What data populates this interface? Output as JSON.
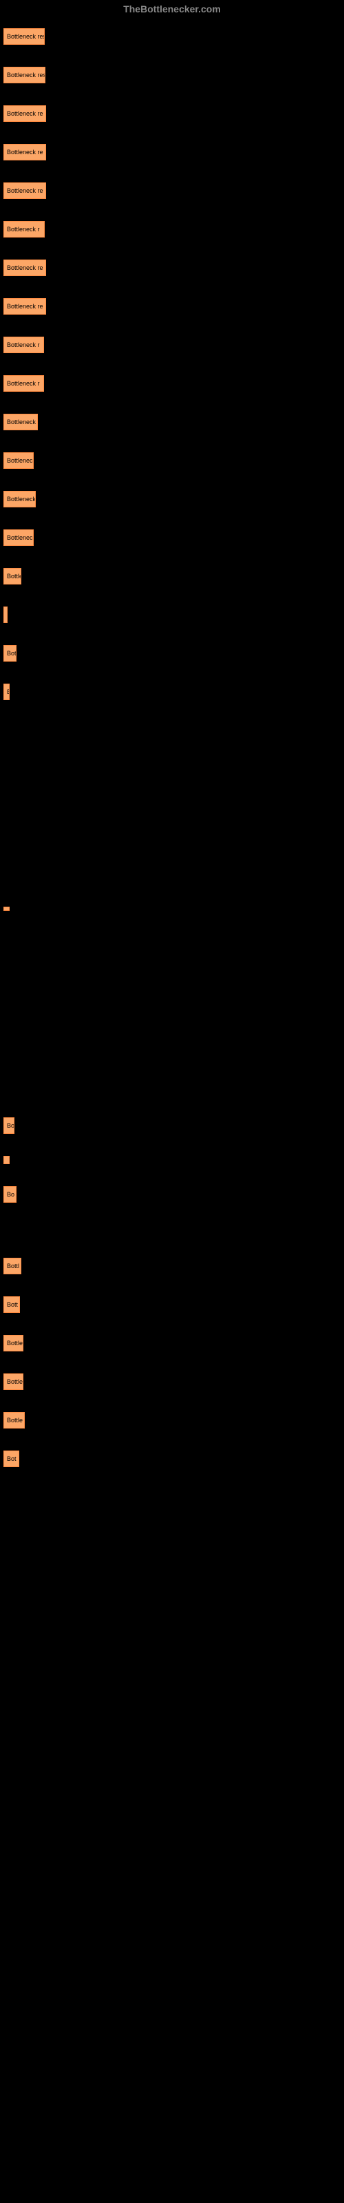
{
  "header": {
    "text": "TheBottlenecker.com"
  },
  "chart": {
    "type": "bar",
    "background_color": "#000000",
    "bar_color": "#fca666",
    "bar_border_color": "#ff8c42",
    "label_color": "#000000",
    "label_fontsize": 9,
    "bars": [
      {
        "width": 60,
        "label": "Bottleneck res",
        "height": 24
      },
      {
        "width": 61,
        "label": "Bottleneck res",
        "height": 24
      },
      {
        "width": 62,
        "label": "Bottleneck re",
        "height": 24
      },
      {
        "width": 62,
        "label": "Bottleneck re",
        "height": 24
      },
      {
        "width": 62,
        "label": "Bottleneck re",
        "height": 24
      },
      {
        "width": 60,
        "label": "Bottleneck r",
        "height": 24
      },
      {
        "width": 62,
        "label": "Bottleneck re",
        "height": 24
      },
      {
        "width": 62,
        "label": "Bottleneck re",
        "height": 24
      },
      {
        "width": 59,
        "label": "Bottleneck r",
        "height": 24
      },
      {
        "width": 59,
        "label": "Bottleneck r",
        "height": 24
      },
      {
        "width": 50,
        "label": "Bottleneck",
        "height": 24
      },
      {
        "width": 44,
        "label": "Bottlenec",
        "height": 24
      },
      {
        "width": 47,
        "label": "Bottleneck",
        "height": 24
      },
      {
        "width": 44,
        "label": "Bottlenec",
        "height": 24
      },
      {
        "width": 26,
        "label": "Bottle",
        "height": 24
      },
      {
        "width": 2,
        "label": "",
        "height": 24
      },
      {
        "width": 19,
        "label": "Bot",
        "height": 24
      },
      {
        "width": 9,
        "label": "B",
        "height": 24,
        "spacing": 300
      },
      {
        "width": 9,
        "label": "",
        "height": 6,
        "spacing": 300
      },
      {
        "width": 16,
        "label": "Bo",
        "height": 24
      },
      {
        "width": 9,
        "label": "",
        "height": 12
      },
      {
        "width": 19,
        "label": "Bo",
        "height": 24,
        "spacing": 80
      },
      {
        "width": 26,
        "label": "Bottl",
        "height": 24
      },
      {
        "width": 24,
        "label": "Bott",
        "height": 24
      },
      {
        "width": 29,
        "label": "Bottle",
        "height": 24
      },
      {
        "width": 29,
        "label": "Bottle",
        "height": 24
      },
      {
        "width": 31,
        "label": "Bottle",
        "height": 24
      },
      {
        "width": 23,
        "label": "Bot",
        "height": 24
      }
    ]
  }
}
